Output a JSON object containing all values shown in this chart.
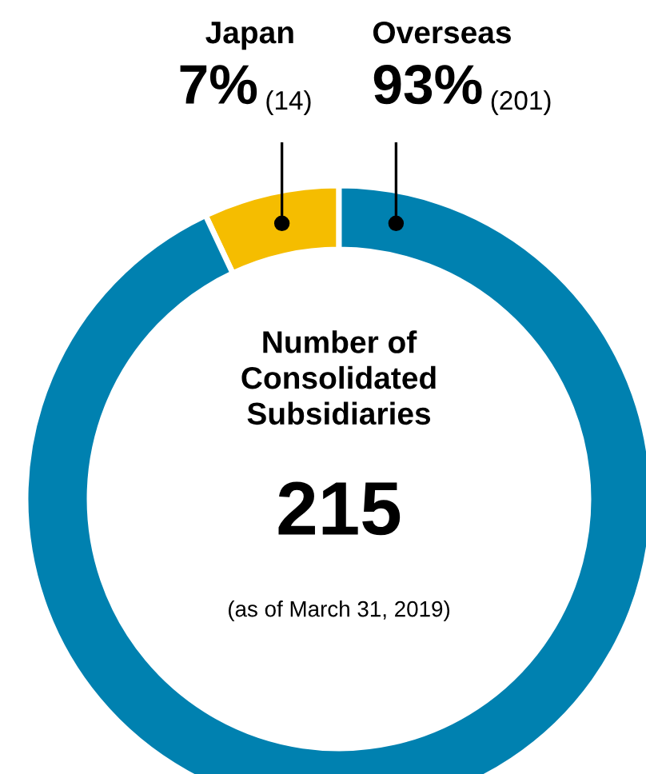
{
  "chart_data": {
    "type": "donut",
    "title": "Number of\nConsolidated\nSubsidiaries",
    "categories": [
      "Japan",
      "Overseas"
    ],
    "values": [
      7,
      93
    ],
    "value_labels": [
      "7% (14)",
      "93% (201)"
    ],
    "colors": [
      "#f5bd00",
      "#0081b0"
    ],
    "annotations": [
      "215",
      "(as of March 31, 2019)"
    ]
  }
}
